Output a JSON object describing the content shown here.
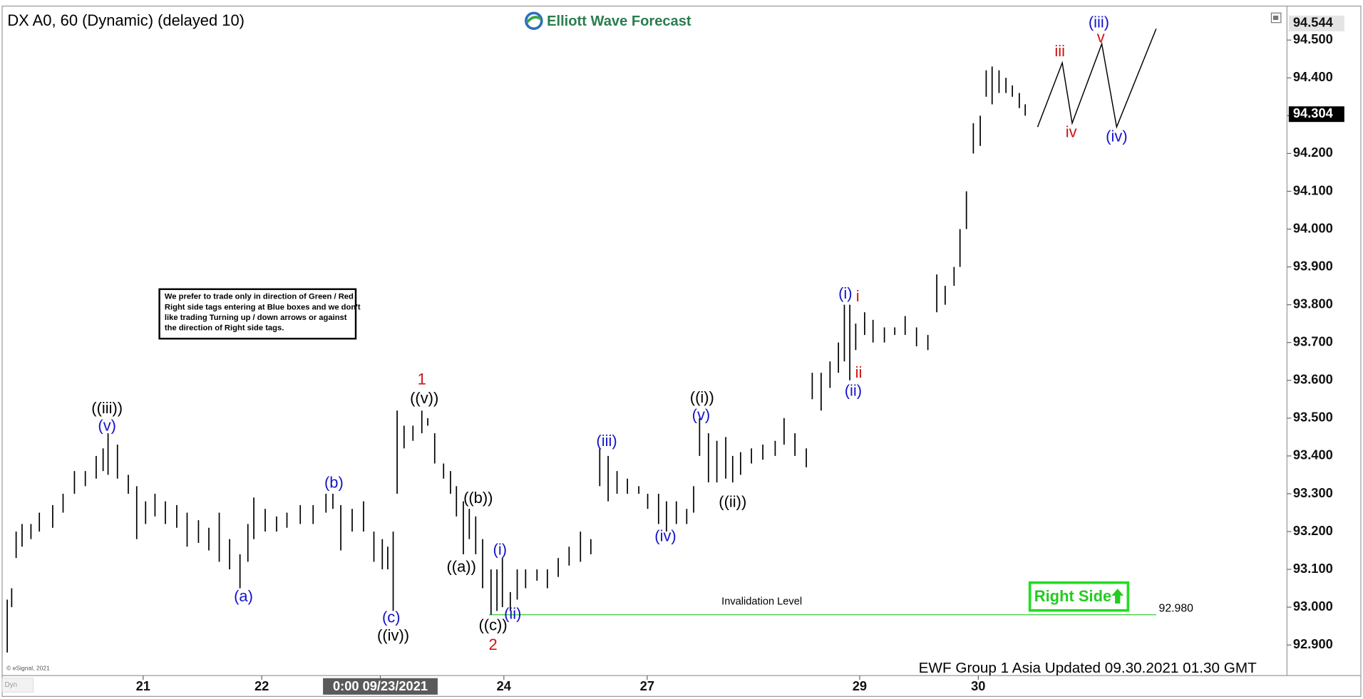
{
  "header": {
    "title": "DX A0, 60 (Dynamic) (delayed 10)",
    "logo": "Elliott Wave Forecast",
    "copyright": "© eSignal, 2021",
    "mode": "Dyn"
  },
  "note": {
    "lines": [
      "We prefer to trade only in direction of Green / Red",
      "Right side tags entering at Blue boxes and we don't",
      "like trading Turning up / down arrows or against",
      "the direction of Right side tags."
    ]
  },
  "button": "Right Side",
  "footer": "EWF Group 1 Asia Updated 09.30.2021 01.30 GMT",
  "chart_data": {
    "type": "ohlc",
    "color": "#000000",
    "xlim": [
      0,
      260
    ],
    "xticks": [
      {
        "value": 28,
        "label": "21"
      },
      {
        "value": 52,
        "label": "22"
      },
      {
        "value": 76,
        "label": "0:00 09/23/2021"
      },
      {
        "value": 101,
        "label": "24"
      },
      {
        "value": 130,
        "label": "27"
      },
      {
        "value": 173,
        "label": "29"
      },
      {
        "value": 197,
        "label": "30"
      }
    ],
    "crosshair_tick": 2,
    "ylim": [
      92.826,
      94.583
    ],
    "yticks": [
      {
        "value": 92.9,
        "label": "92.900"
      },
      {
        "value": 93.0,
        "label": "93.000"
      },
      {
        "value": 93.1,
        "label": "93.100"
      },
      {
        "value": 93.2,
        "label": "93.200"
      },
      {
        "value": 93.3,
        "label": "93.300"
      },
      {
        "value": 93.4,
        "label": "93.400"
      },
      {
        "value": 93.5,
        "label": "93.500"
      },
      {
        "value": 93.6,
        "label": "93.600"
      },
      {
        "value": 93.7,
        "label": "93.700"
      },
      {
        "value": 93.8,
        "label": "93.800"
      },
      {
        "value": 93.9,
        "label": "93.900"
      },
      {
        "value": 94.0,
        "label": "94.000"
      },
      {
        "value": 94.1,
        "label": "94.100"
      },
      {
        "value": 94.2,
        "label": "94.200"
      },
      {
        "value": 94.3,
        "label": "94.300"
      },
      {
        "value": 94.4,
        "label": "94.400"
      },
      {
        "value": 94.5,
        "label": "94.500"
      }
    ],
    "x": [
      0.5,
      1.4,
      2.3,
      3.5,
      5.3,
      7,
      9.7,
      11.8,
      14.1,
      16.3,
      18.5,
      19.9,
      20.9,
      22.8,
      25,
      26.7,
      28.5,
      30.4,
      32.5,
      34.8,
      36.9,
      39.2,
      41.3,
      43.4,
      45.5,
      47.6,
      49.2,
      50.4,
      52.7,
      55,
      57.1,
      59.8,
      62.4,
      65,
      66.4,
      68,
      70.3,
      72.6,
      74.7,
      76.4,
      77.5,
      78.6,
      79.4,
      80.8,
      82.6,
      84.4,
      85.6,
      87,
      88.8,
      90.2,
      91.4,
      92.8,
      94,
      95.3,
      96.7,
      98.4,
      99.6,
      100.7,
      102.3,
      103.7,
      105.4,
      107.7,
      109.8,
      112,
      114.2,
      116.5,
      118.6,
      120.4,
      122.1,
      123.9,
      126,
      128.3,
      130.1,
      132.3,
      133.9,
      135.9,
      138,
      139.4,
      140.6,
      142.4,
      144.1,
      145.9,
      147.3,
      148.9,
      151.1,
      153.4,
      155.9,
      157.7,
      159.9,
      162.2,
      163.4,
      165.2,
      167,
      168.7,
      169.9,
      171,
      172.2,
      174,
      175.7,
      178,
      180.1,
      182.2,
      184.5,
      186.8,
      188.6,
      190.3,
      192.1,
      193.3,
      194.6,
      196,
      197.4,
      198.6,
      199.8,
      201.2,
      202.6,
      203.9,
      205.3,
      206.5
    ],
    "high": [
      93.02,
      93.05,
      93.2,
      93.22,
      93.22,
      93.25,
      93.27,
      93.3,
      93.36,
      93.36,
      93.4,
      93.42,
      93.46,
      93.43,
      93.35,
      93.32,
      93.28,
      93.3,
      93.28,
      93.27,
      93.25,
      93.23,
      93.21,
      93.25,
      93.18,
      93.14,
      93.22,
      93.29,
      93.26,
      93.24,
      93.25,
      93.27,
      93.27,
      93.3,
      93.3,
      93.27,
      93.26,
      93.28,
      93.2,
      93.18,
      93.16,
      93.2,
      93.52,
      93.48,
      93.48,
      93.52,
      93.5,
      93.46,
      93.38,
      93.36,
      93.32,
      93.28,
      93.26,
      93.24,
      93.18,
      93.1,
      93.1,
      93.13,
      93.04,
      93.1,
      93.1,
      93.1,
      93.1,
      93.13,
      93.16,
      93.2,
      93.18,
      93.42,
      93.4,
      93.36,
      93.34,
      93.32,
      93.3,
      93.3,
      93.28,
      93.28,
      93.26,
      93.32,
      93.5,
      93.46,
      93.44,
      93.45,
      93.4,
      93.41,
      93.42,
      93.43,
      93.44,
      93.5,
      93.46,
      93.42,
      93.62,
      93.62,
      93.65,
      93.7,
      93.8,
      93.8,
      93.75,
      93.78,
      93.76,
      93.74,
      93.74,
      93.77,
      93.74,
      93.72,
      93.88,
      93.85,
      93.9,
      94.0,
      94.1,
      94.28,
      94.3,
      94.42,
      94.43,
      94.42,
      94.4,
      94.38,
      94.36,
      94.33
    ],
    "low": [
      92.88,
      93.0,
      93.13,
      93.16,
      93.18,
      93.2,
      93.21,
      93.25,
      93.3,
      93.32,
      93.34,
      93.36,
      93.35,
      93.34,
      93.3,
      93.18,
      93.22,
      93.24,
      93.22,
      93.21,
      93.16,
      93.17,
      93.15,
      93.12,
      93.1,
      93.05,
      93.12,
      93.18,
      93.2,
      93.2,
      93.21,
      93.22,
      93.22,
      93.25,
      93.26,
      93.15,
      93.2,
      93.2,
      93.12,
      93.1,
      93.1,
      92.99,
      93.3,
      93.42,
      93.44,
      93.46,
      93.48,
      93.38,
      93.34,
      93.3,
      93.24,
      93.14,
      93.18,
      93.14,
      93.05,
      92.98,
      92.99,
      93.0,
      92.99,
      93.02,
      93.05,
      93.07,
      93.05,
      93.08,
      93.11,
      93.12,
      93.14,
      93.32,
      93.28,
      93.3,
      93.3,
      93.3,
      93.26,
      93.22,
      93.2,
      93.22,
      93.22,
      93.25,
      93.4,
      93.33,
      93.33,
      93.34,
      93.33,
      93.35,
      93.38,
      93.39,
      93.4,
      93.43,
      93.4,
      93.37,
      93.55,
      93.52,
      93.58,
      93.62,
      93.65,
      93.6,
      93.68,
      93.72,
      93.7,
      93.7,
      93.72,
      93.72,
      93.69,
      93.68,
      93.78,
      93.8,
      93.85,
      93.9,
      94.0,
      94.2,
      94.22,
      94.35,
      94.33,
      94.36,
      94.36,
      94.35,
      94.32,
      94.3
    ],
    "projection": {
      "color": "#000000",
      "x": [
        209,
        214,
        216,
        222,
        225,
        233
      ],
      "y": [
        94.27,
        94.44,
        94.28,
        94.49,
        94.27,
        94.53
      ]
    },
    "last_price": 94.304,
    "target_price": 94.544,
    "invalidation": {
      "label": "Invalidation Level",
      "value": {
        "value": 92.98,
        "label": "92.980"
      },
      "x": [
        98,
        233
      ],
      "color": "#33cc33"
    },
    "annotations": [
      {
        "text": "((iii))",
        "x": 20.7,
        "y": 93.524,
        "color": "#000000"
      },
      {
        "text": "(v)",
        "x": 20.7,
        "y": 93.478,
        "color": "#1414c8"
      },
      {
        "text": "(a)",
        "x": 48.3,
        "y": 93.026,
        "color": "#1414c8"
      },
      {
        "text": "(b)",
        "x": 66.6,
        "y": 93.327,
        "color": "#1414c8"
      },
      {
        "text": "(c)",
        "x": 78.2,
        "y": 92.971,
        "color": "#1414c8"
      },
      {
        "text": "((iv))",
        "x": 78.6,
        "y": 92.923,
        "color": "#000000"
      },
      {
        "text": "1",
        "x": 84.4,
        "y": 93.6,
        "color": "#d01010"
      },
      {
        "text": "((v))",
        "x": 84.9,
        "y": 93.55,
        "color": "#000000"
      },
      {
        "text": "((b))",
        "x": 95.8,
        "y": 93.286,
        "color": "#000000"
      },
      {
        "text": "((a))",
        "x": 92.4,
        "y": 93.104,
        "color": "#000000"
      },
      {
        "text": "(i)",
        "x": 100.2,
        "y": 93.15,
        "color": "#1414c8"
      },
      {
        "text": "(ii)",
        "x": 102.8,
        "y": 92.98,
        "color": "#1414c8"
      },
      {
        "text": "((c))",
        "x": 98.8,
        "y": 92.95,
        "color": "#000000"
      },
      {
        "text": "2",
        "x": 98.8,
        "y": 92.898,
        "color": "#d01010"
      },
      {
        "text": "(iii)",
        "x": 121.8,
        "y": 93.437,
        "color": "#1414c8"
      },
      {
        "text": "(iv)",
        "x": 133.7,
        "y": 93.185,
        "color": "#1414c8"
      },
      {
        "text": "((i))",
        "x": 141.1,
        "y": 93.552,
        "color": "#000000"
      },
      {
        "text": "(v)",
        "x": 140.9,
        "y": 93.506,
        "color": "#1414c8"
      },
      {
        "text": "((ii))",
        "x": 147.3,
        "y": 93.276,
        "color": "#000000"
      },
      {
        "text": "(i)",
        "x": 170.1,
        "y": 93.827,
        "color": "#1414c8"
      },
      {
        "text": "i",
        "x": 172.6,
        "y": 93.82,
        "color": "#d01010"
      },
      {
        "text": "ii",
        "x": 172.8,
        "y": 93.618,
        "color": "#d01010"
      },
      {
        "text": "(ii)",
        "x": 171.7,
        "y": 93.57,
        "color": "#1414c8"
      },
      {
        "text": "iii",
        "x": 213.5,
        "y": 94.468,
        "color": "#d01010"
      },
      {
        "text": "iv",
        "x": 215.8,
        "y": 94.254,
        "color": "#d01010"
      },
      {
        "text": "(iii)",
        "x": 221.4,
        "y": 94.544,
        "color": "#1414c8"
      },
      {
        "text": "v",
        "x": 221.8,
        "y": 94.505,
        "color": "#d01010"
      },
      {
        "text": "(iv)",
        "x": 225,
        "y": 94.243,
        "color": "#1414c8"
      }
    ]
  }
}
